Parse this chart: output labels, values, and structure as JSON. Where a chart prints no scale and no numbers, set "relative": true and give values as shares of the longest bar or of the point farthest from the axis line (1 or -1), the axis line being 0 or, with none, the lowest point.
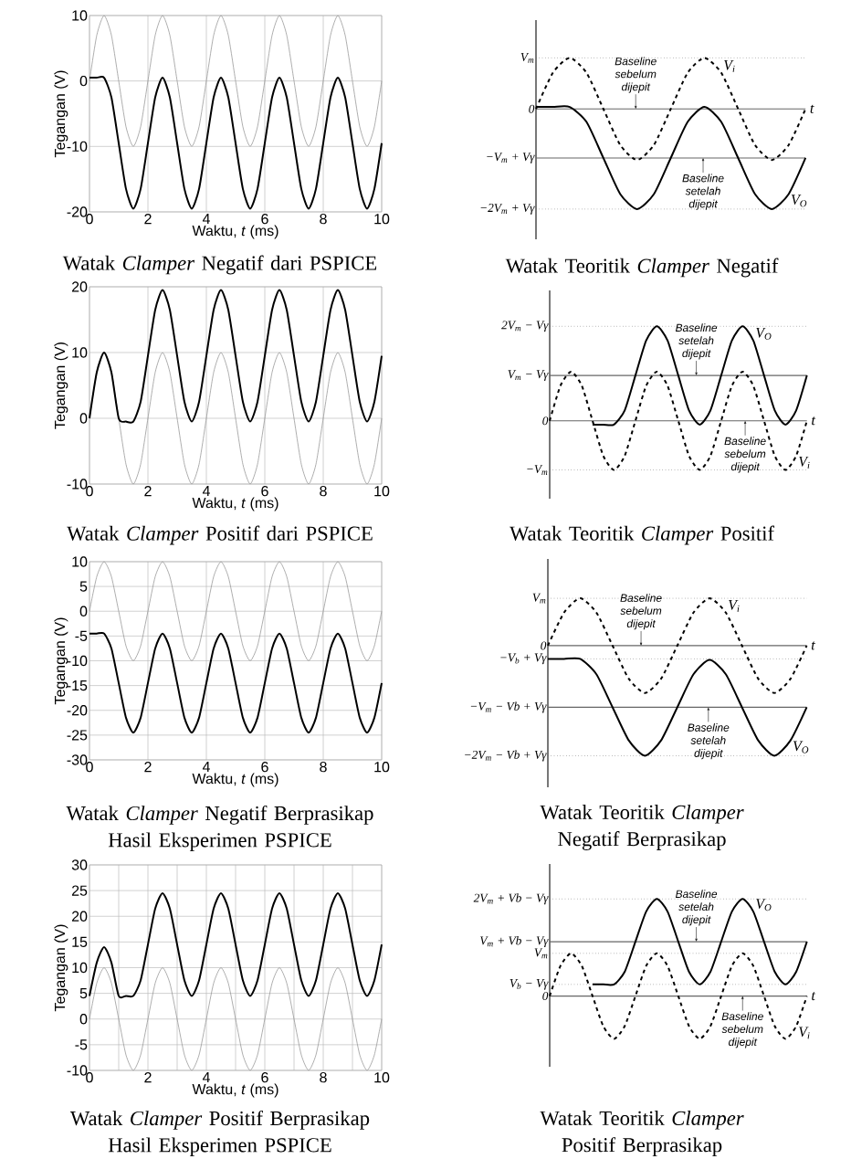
{
  "chart_data": [
    {
      "type": "line",
      "title": "Watak *Clamper* Negatif dari PSPICE",
      "xlabel": "Waktu, *t* (ms)",
      "ylabel": "Tegangan (V)",
      "xlim": [
        0,
        10
      ],
      "ylim": [
        -20,
        10
      ],
      "xticks": [
        0,
        2,
        4,
        6,
        8,
        10
      ],
      "yticks": [
        -20,
        -10,
        0,
        10
      ],
      "grid": true,
      "x": [
        0,
        0.25,
        0.5,
        0.75,
        1,
        1.25,
        1.5,
        1.75,
        2,
        2.25,
        2.5,
        2.75,
        3,
        3.25,
        3.5,
        3.75,
        4,
        4.25,
        4.5,
        4.75,
        5,
        5.25,
        5.5,
        5.75,
        6,
        6.25,
        6.5,
        6.75,
        7,
        7.25,
        7.5,
        7.75,
        8,
        8.25,
        8.5,
        8.75,
        9,
        9.25,
        9.5,
        9.75,
        10
      ],
      "series": [
        {
          "color": "#999999",
          "values": [
            0,
            7,
            10,
            7,
            0,
            -7,
            -10,
            -7,
            0,
            7,
            10,
            7,
            0,
            -7,
            -10,
            -7,
            0,
            7,
            10,
            7,
            0,
            -7,
            -10,
            -7,
            0,
            7,
            10,
            7,
            0,
            -7,
            -10,
            -7,
            0,
            7,
            10,
            7,
            0,
            -7,
            -10,
            -7,
            0
          ]
        },
        {
          "color": "#000000",
          "values": [
            0.5,
            0.5,
            0.5,
            -2.5,
            -9.5,
            -16.5,
            -19.5,
            -16.5,
            -9.5,
            -2.5,
            0.5,
            -2.5,
            -9.5,
            -16.5,
            -19.5,
            -16.5,
            -9.5,
            -2.5,
            0.5,
            -2.5,
            -9.5,
            -16.5,
            -19.5,
            -16.5,
            -9.5,
            -2.5,
            0.5,
            -2.5,
            -9.5,
            -16.5,
            -19.5,
            -16.5,
            -9.5,
            -2.5,
            0.5,
            -2.5,
            -9.5,
            -16.5,
            -19.5,
            -16.5,
            -9.5
          ]
        }
      ]
    },
    {
      "type": "line",
      "relative": true,
      "title": "Watak Teoritik *Clamper* Negatif",
      "xlabel": "t",
      "categories": [
        null,
        null,
        null,
        null,
        null,
        null,
        null,
        null,
        null,
        null,
        null,
        null,
        null,
        null,
        null,
        null,
        null
      ],
      "series": [
        {
          "name": "V$_{i}$",
          "color": "#000000",
          "line_style": "dashed",
          "values": [
            0,
            0.36,
            0.51,
            0.36,
            0,
            -0.36,
            -0.51,
            -0.36,
            0,
            0.36,
            0.51,
            0.36,
            0,
            -0.36,
            -0.51,
            -0.36,
            0
          ]
        },
        {
          "name": "V$_{O}$",
          "color": "#000000",
          "line_style": "solid",
          "values": [
            0.02,
            0.02,
            0.02,
            -0.13,
            -0.49,
            -0.85,
            -1,
            -0.85,
            -0.49,
            -0.13,
            0.02,
            -0.13,
            -0.49,
            -0.85,
            -1,
            -0.85,
            -0.49
          ]
        }
      ],
      "ref_lines": [
        {
          "axis": "y",
          "value": 0.51,
          "label": "V$_{m}$",
          "line_style": "dotted"
        },
        {
          "axis": "y",
          "value": 0,
          "label": "0",
          "line_style": "solid"
        },
        {
          "axis": "y",
          "value": -0.49,
          "label": "−V$_{m}$ + Vγ",
          "line_style": "solid"
        },
        {
          "axis": "y",
          "value": -1,
          "label": "−2V$_{m}$ + Vγ",
          "line_style": "dotted"
        }
      ],
      "annotations": [
        {
          "text": "Baseline sebelum dijepit",
          "y": 0
        },
        {
          "text": "Baseline setelah dijepit",
          "y": -0.49
        }
      ]
    },
    {
      "type": "line",
      "title": "Watak *Clamper* Positif dari PSPICE",
      "xlabel": "Waktu, *t* (ms)",
      "ylabel": "Tegangan (V)",
      "xlim": [
        0,
        10
      ],
      "ylim": [
        -10,
        20
      ],
      "xticks": [
        0,
        2,
        4,
        6,
        8,
        10
      ],
      "yticks": [
        -10,
        0,
        10,
        20
      ],
      "grid": true,
      "x": [
        0,
        0.25,
        0.5,
        0.75,
        1,
        1.25,
        1.5,
        1.75,
        2,
        2.25,
        2.5,
        2.75,
        3,
        3.25,
        3.5,
        3.75,
        4,
        4.25,
        4.5,
        4.75,
        5,
        5.25,
        5.5,
        5.75,
        6,
        6.25,
        6.5,
        6.75,
        7,
        7.25,
        7.5,
        7.75,
        8,
        8.25,
        8.5,
        8.75,
        9,
        9.25,
        9.5,
        9.75,
        10
      ],
      "series": [
        {
          "color": "#999999",
          "values": [
            0,
            7,
            10,
            7,
            0,
            -7,
            -10,
            -7,
            0,
            7,
            10,
            7,
            0,
            -7,
            -10,
            -7,
            0,
            7,
            10,
            7,
            0,
            -7,
            -10,
            -7,
            0,
            7,
            10,
            7,
            0,
            -7,
            -10,
            -7,
            0,
            7,
            10,
            7,
            0,
            -7,
            -10,
            -7,
            0
          ]
        },
        {
          "color": "#000000",
          "values": [
            0,
            7,
            10,
            7,
            0,
            -0.5,
            -0.5,
            2.5,
            9.5,
            16.5,
            19.5,
            16.5,
            9.5,
            2.5,
            -0.5,
            2.5,
            9.5,
            16.5,
            19.5,
            16.5,
            9.5,
            2.5,
            -0.5,
            2.5,
            9.5,
            16.5,
            19.5,
            16.5,
            9.5,
            2.5,
            -0.5,
            2.5,
            9.5,
            16.5,
            19.5,
            16.5,
            9.5,
            2.5,
            -0.5,
            2.5,
            9.5
          ]
        }
      ]
    },
    {
      "type": "line",
      "relative": true,
      "title": "Watak Teoritik *Clamper* Positif",
      "xlabel": "t",
      "categories": [
        null,
        null,
        null,
        null,
        null,
        null,
        null,
        null,
        null,
        null,
        null,
        null,
        null,
        null,
        null,
        null,
        null,
        null,
        null,
        null,
        null,
        null,
        null,
        null,
        null
      ],
      "series": [
        {
          "name": "V$_{i}$",
          "color": "#000000",
          "line_style": "dashed",
          "values": [
            0,
            0.37,
            0.52,
            0.37,
            0,
            -0.37,
            -0.52,
            -0.37,
            0,
            0.37,
            0.52,
            0.37,
            0,
            -0.37,
            -0.52,
            -0.37,
            0,
            0.37,
            0.52,
            0.37,
            0,
            -0.37,
            -0.52,
            -0.37,
            0
          ]
        },
        {
          "name": "V$_{O}$",
          "color": "#000000",
          "line_style": "solid",
          "values": [
            null,
            null,
            null,
            null,
            -0.04,
            -0.04,
            -0.04,
            0.11,
            0.48,
            0.85,
            1,
            0.85,
            0.48,
            0.11,
            -0.04,
            0.11,
            0.48,
            0.85,
            1,
            0.85,
            0.48,
            0.11,
            -0.04,
            0.11,
            0.48
          ]
        }
      ],
      "ref_lines": [
        {
          "axis": "y",
          "value": 1,
          "label": "2V$_{m}$ − Vγ",
          "line_style": "dotted"
        },
        {
          "axis": "y",
          "value": 0.48,
          "label": "V$_{m}$ − Vγ",
          "line_style": "solid"
        },
        {
          "axis": "y",
          "value": 0,
          "label": "0",
          "line_style": "solid"
        },
        {
          "axis": "y",
          "value": -0.52,
          "label": "−V$_{m}$",
          "line_style": "dotted"
        }
      ],
      "annotations": [
        {
          "text": "Baseline setelah dijepit",
          "y": 0.48
        },
        {
          "text": "Baseline sebelum dijepit",
          "y": 0
        }
      ]
    },
    {
      "type": "line",
      "title": "Watak *Clamper* Negatif Berprasikap Hasil Eksperimen PSPICE",
      "xlabel": "Waktu, *t* (ms)",
      "ylabel": "Tegangan (V)",
      "xlim": [
        0,
        10
      ],
      "ylim": [
        -30,
        10
      ],
      "xticks": [
        0,
        2,
        4,
        6,
        8,
        10
      ],
      "yticks": [
        -30,
        -25,
        -20,
        -15,
        -10,
        -5,
        0,
        5,
        10
      ],
      "grid": true,
      "x": [
        0,
        0.25,
        0.5,
        0.75,
        1,
        1.25,
        1.5,
        1.75,
        2,
        2.25,
        2.5,
        2.75,
        3,
        3.25,
        3.5,
        3.75,
        4,
        4.25,
        4.5,
        4.75,
        5,
        5.25,
        5.5,
        5.75,
        6,
        6.25,
        6.5,
        6.75,
        7,
        7.25,
        7.5,
        7.75,
        8,
        8.25,
        8.5,
        8.75,
        9,
        9.25,
        9.5,
        9.75,
        10
      ],
      "series": [
        {
          "color": "#999999",
          "values": [
            0,
            7,
            10,
            7,
            0,
            -7,
            -10,
            -7,
            0,
            7,
            10,
            7,
            0,
            -7,
            -10,
            -7,
            0,
            7,
            10,
            7,
            0,
            -7,
            -10,
            -7,
            0,
            7,
            10,
            7,
            0,
            -7,
            -10,
            -7,
            0,
            7,
            10,
            7,
            0,
            -7,
            -10,
            -7,
            0
          ]
        },
        {
          "color": "#000000",
          "values": [
            -4.5,
            -4.5,
            -4.5,
            -7.5,
            -14.5,
            -21.5,
            -24.5,
            -21.5,
            -14.5,
            -7.5,
            -4.5,
            -7.5,
            -14.5,
            -21.5,
            -24.5,
            -21.5,
            -14.5,
            -7.5,
            -4.5,
            -7.5,
            -14.5,
            -21.5,
            -24.5,
            -21.5,
            -14.5,
            -7.5,
            -4.5,
            -7.5,
            -14.5,
            -21.5,
            -24.5,
            -21.5,
            -14.5,
            -7.5,
            -4.5,
            -7.5,
            -14.5,
            -21.5,
            -24.5,
            -21.5,
            -14.5
          ]
        }
      ]
    },
    {
      "type": "line",
      "relative": true,
      "title": "Watak Teoritik *Clamper* Negatif Berprasikap",
      "xlabel": "t",
      "categories": [
        null,
        null,
        null,
        null,
        null,
        null,
        null,
        null,
        null,
        null,
        null,
        null,
        null,
        null,
        null,
        null,
        null
      ],
      "series": [
        {
          "name": "V$_{i}$",
          "color": "#000000",
          "line_style": "dashed",
          "values": [
            0,
            0.3,
            0.43,
            0.3,
            0,
            -0.3,
            -0.43,
            -0.3,
            0,
            0.3,
            0.43,
            0.3,
            0,
            -0.3,
            -0.43,
            -0.3,
            0
          ]
        },
        {
          "name": "V$_{O}$",
          "color": "#000000",
          "line_style": "solid",
          "values": [
            -0.12,
            -0.12,
            -0.12,
            -0.26,
            -0.56,
            -0.86,
            -1,
            -0.86,
            -0.56,
            -0.26,
            -0.13,
            -0.26,
            -0.56,
            -0.86,
            -1,
            -0.86,
            -0.56
          ]
        }
      ],
      "ref_lines": [
        {
          "axis": "y",
          "value": 0.43,
          "label": "V$_{m}$",
          "line_style": "dotted"
        },
        {
          "axis": "y",
          "value": 0,
          "label": "0",
          "line_style": "solid"
        },
        {
          "axis": "y",
          "value": -0.12,
          "label": "−V$_{b}$ + Vγ",
          "line_style": "dotted"
        },
        {
          "axis": "y",
          "value": -0.56,
          "label": "−V$_{m}$ − Vb + Vγ",
          "line_style": "solid"
        },
        {
          "axis": "y",
          "value": -1,
          "label": "−2V$_{m}$ − Vb + Vγ",
          "line_style": "dotted"
        }
      ],
      "annotations": [
        {
          "text": "Baseline sebelum dijepit",
          "y": 0
        },
        {
          "text": "Baseline setelah dijepit",
          "y": -0.56
        }
      ]
    },
    {
      "type": "line",
      "title": "Watak *Clamper* Positif Berprasikap Hasil Eksperimen PSPICE",
      "xlabel": "Waktu, *t* (ms)",
      "ylabel": "Tegangan (V)",
      "xlim": [
        0,
        10
      ],
      "ylim": [
        -10,
        30
      ],
      "xticks": [
        0,
        {
          "value": 1,
          "label": null
        },
        2,
        {
          "value": 3,
          "label": null
        },
        4,
        {
          "value": 5,
          "label": null
        },
        6,
        {
          "value": 7,
          "label": null
        },
        8,
        {
          "value": 9,
          "label": null
        },
        10
      ],
      "yticks": [
        -10,
        -5,
        0,
        5,
        10,
        15,
        20,
        25,
        30
      ],
      "grid": true,
      "x": [
        0,
        0.25,
        0.5,
        0.75,
        1,
        1.25,
        1.5,
        1.75,
        2,
        2.25,
        2.5,
        2.75,
        3,
        3.25,
        3.5,
        3.75,
        4,
        4.25,
        4.5,
        4.75,
        5,
        5.25,
        5.5,
        5.75,
        6,
        6.25,
        6.5,
        6.75,
        7,
        7.25,
        7.5,
        7.75,
        8,
        8.25,
        8.5,
        8.75,
        9,
        9.25,
        9.5,
        9.75,
        10
      ],
      "series": [
        {
          "color": "#999999",
          "values": [
            0,
            7,
            10,
            7,
            0,
            -7,
            -10,
            -7,
            0,
            7,
            10,
            7,
            0,
            -7,
            -10,
            -7,
            0,
            7,
            10,
            7,
            0,
            -7,
            -10,
            -7,
            0,
            7,
            10,
            7,
            0,
            -7,
            -10,
            -7,
            0,
            7,
            10,
            7,
            0,
            -7,
            -10,
            -7,
            0
          ]
        },
        {
          "color": "#000000",
          "values": [
            4.5,
            11,
            14,
            11,
            4.5,
            4.5,
            4.5,
            7.5,
            14.5,
            21.5,
            24.5,
            21.5,
            14.5,
            7.5,
            4.5,
            7.5,
            14.5,
            21.5,
            24.5,
            21.5,
            14.5,
            7.5,
            4.5,
            7.5,
            14.5,
            21.5,
            24.5,
            21.5,
            14.5,
            7.5,
            4.5,
            7.5,
            14.5,
            21.5,
            24.5,
            21.5,
            14.5,
            7.5,
            4.5,
            7.5,
            14.5
          ]
        }
      ]
    },
    {
      "type": "line",
      "relative": true,
      "title": "Watak Teoritik *Clamper* Positif Berprasikap",
      "xlabel": "t",
      "categories": [
        null,
        null,
        null,
        null,
        null,
        null,
        null,
        null,
        null,
        null,
        null,
        null,
        null,
        null,
        null,
        null,
        null,
        null,
        null,
        null,
        null,
        null,
        null,
        null,
        null
      ],
      "series": [
        {
          "name": "V$_{i}$",
          "color": "#000000",
          "line_style": "dashed",
          "values": [
            0,
            0.31,
            0.44,
            0.31,
            0,
            -0.31,
            -0.44,
            -0.31,
            0,
            0.31,
            0.44,
            0.31,
            0,
            -0.31,
            -0.44,
            -0.31,
            0,
            0.31,
            0.44,
            0.31,
            0,
            -0.31,
            -0.44,
            -0.31,
            0
          ]
        },
        {
          "name": "V$_{O}$",
          "color": "#000000",
          "line_style": "solid",
          "values": [
            null,
            null,
            null,
            null,
            0.12,
            0.12,
            0.12,
            0.25,
            0.56,
            0.87,
            1,
            0.87,
            0.56,
            0.25,
            0.12,
            0.25,
            0.56,
            0.87,
            1,
            0.87,
            0.56,
            0.25,
            0.12,
            0.25,
            0.56
          ]
        }
      ],
      "ref_lines": [
        {
          "axis": "y",
          "value": 1,
          "label": "2V$_{m}$ + Vb − Vγ",
          "line_style": "dotted"
        },
        {
          "axis": "y",
          "value": 0.56,
          "label": "V$_{m}$ + Vb − Vγ",
          "line_style": "solid"
        },
        {
          "axis": "y",
          "value": 0.44,
          "label": "V$_{m}$",
          "line_style": "dotted"
        },
        {
          "axis": "y",
          "value": 0.12,
          "label": "V$_{b}$ − Vγ",
          "line_style": "dotted"
        },
        {
          "axis": "y",
          "value": 0,
          "label": "0",
          "line_style": "solid"
        }
      ],
      "annotations": [
        {
          "text": "Baseline setelah dijepit",
          "y": 0.56
        },
        {
          "text": "Baseline sebelum dijepit",
          "y": 0
        }
      ]
    }
  ]
}
